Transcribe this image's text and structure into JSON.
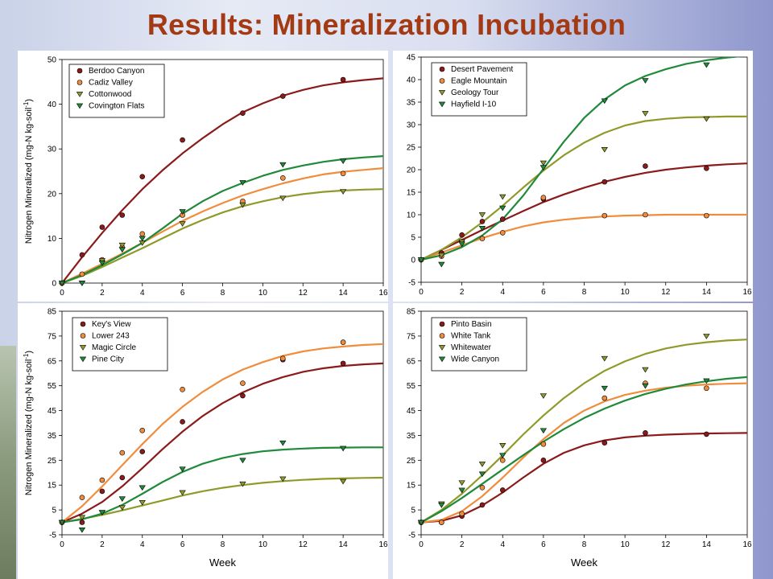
{
  "slide": {
    "title": "Results: Mineralization Incubation"
  },
  "colors": {
    "series1": "#8b1a1a",
    "series2": "#f08c3c",
    "series3": "#8f9a2a",
    "series4": "#1f8a3a",
    "title": "#a33a14"
  },
  "chart_data": [
    {
      "type": "scatter",
      "panel": "top-left",
      "xlabel": "",
      "ylabel": "Nitrogen Mineralized (mg-N kg-soil-1)",
      "xlim": [
        0,
        16
      ],
      "ylim": [
        0,
        50
      ],
      "xticks": [
        0,
        2,
        4,
        6,
        8,
        10,
        12,
        14,
        16
      ],
      "yticks": [
        0,
        10,
        20,
        30,
        40,
        50
      ],
      "legend_position": "top-left",
      "series": [
        {
          "name": "Berdoo Canyon",
          "marker": "circle",
          "x": [
            0,
            1,
            2,
            3,
            4,
            6,
            9,
            11,
            14
          ],
          "y": [
            0,
            6.3,
            12.5,
            15.2,
            23.8,
            32,
            38,
            41.8,
            45.5
          ],
          "fit_x": [
            0,
            1,
            2,
            3,
            4,
            5,
            6,
            7,
            8,
            9,
            10,
            11,
            12,
            13,
            14,
            15,
            16
          ],
          "fit_y": [
            0,
            5.8,
            11.2,
            16.3,
            21,
            25.2,
            29,
            32.4,
            35.5,
            38.2,
            40.2,
            41.9,
            43.2,
            44.2,
            44.9,
            45.4,
            45.8
          ]
        },
        {
          "name": "Cadiz Valley",
          "marker": "circle",
          "x": [
            0,
            1,
            2,
            3,
            4,
            6,
            9,
            11,
            14
          ],
          "y": [
            0,
            2,
            5.2,
            8,
            11,
            15.2,
            18.3,
            23.5,
            24.5
          ],
          "fit_x": [
            0,
            1,
            2,
            3,
            4,
            5,
            6,
            7,
            8,
            9,
            10,
            11,
            12,
            13,
            14,
            15,
            16
          ],
          "fit_y": [
            0,
            2.1,
            4.3,
            6.6,
            9,
            11.5,
            13.9,
            16,
            17.9,
            19.6,
            21,
            22.3,
            23.4,
            24.3,
            24.9,
            25.3,
            25.7
          ]
        },
        {
          "name": "Cottonwood",
          "marker": "triangle-down",
          "x": [
            0,
            1,
            2,
            3,
            4,
            6,
            9,
            11,
            14
          ],
          "y": [
            0,
            0,
            5,
            8.5,
            9,
            13.3,
            17.5,
            19,
            20.5
          ],
          "fit_x": [
            0,
            1,
            2,
            3,
            4,
            5,
            6,
            7,
            8,
            9,
            10,
            11,
            12,
            13,
            14,
            15,
            16
          ],
          "fit_y": [
            0,
            1.6,
            3.6,
            5.7,
            7.8,
            10,
            12.2,
            14.1,
            15.8,
            17.2,
            18.3,
            19.2,
            19.9,
            20.4,
            20.7,
            20.9,
            21
          ]
        },
        {
          "name": "Covington Flats",
          "marker": "triangle-down",
          "x": [
            0,
            1,
            2,
            3,
            4,
            6,
            9,
            11,
            14
          ],
          "y": [
            0,
            0,
            4.5,
            7.5,
            10,
            16,
            22.5,
            26.5,
            27.3
          ],
          "fit_x": [
            0,
            1,
            2,
            3,
            4,
            5,
            6,
            7,
            8,
            9,
            10,
            11,
            12,
            13,
            14,
            15,
            16
          ],
          "fit_y": [
            0,
            1.8,
            4,
            6.4,
            9,
            12.2,
            15.5,
            18.3,
            20.6,
            22.4,
            24,
            25.3,
            26.3,
            27.1,
            27.7,
            28.1,
            28.4
          ]
        }
      ]
    },
    {
      "type": "scatter",
      "panel": "top-right",
      "xlabel": "",
      "ylabel": "",
      "xlim": [
        0,
        16
      ],
      "ylim": [
        -5,
        45
      ],
      "xticks": [
        0,
        2,
        4,
        6,
        8,
        10,
        12,
        14,
        16
      ],
      "yticks": [
        -5,
        0,
        5,
        10,
        15,
        20,
        25,
        30,
        35,
        40,
        45
      ],
      "legend_position": "top-left",
      "series": [
        {
          "name": "Desert Pavement",
          "marker": "circle",
          "x": [
            0,
            1,
            2,
            3,
            4,
            6,
            9,
            11,
            14
          ],
          "y": [
            0,
            1.5,
            5.5,
            8.5,
            9,
            13.5,
            17.3,
            20.8,
            20.3
          ],
          "fit_x": [
            0,
            1,
            2,
            3,
            4,
            5,
            6,
            7,
            8,
            9,
            10,
            11,
            12,
            13,
            14,
            15,
            16
          ],
          "fit_y": [
            0,
            2.2,
            4.4,
            6.6,
            8.7,
            10.8,
            12.8,
            14.5,
            16,
            17.3,
            18.4,
            19.3,
            20,
            20.5,
            20.9,
            21.2,
            21.4
          ]
        },
        {
          "name": "Eagle Mountain",
          "marker": "circle",
          "x": [
            0,
            1,
            2,
            3,
            4,
            6,
            9,
            11,
            14
          ],
          "y": [
            0,
            0.8,
            4,
            4.7,
            6,
            13.8,
            9.8,
            10,
            9.8
          ],
          "fit_x": [
            0,
            1,
            2,
            3,
            4,
            5,
            6,
            7,
            8,
            9,
            10,
            11,
            12,
            13,
            14,
            15,
            16
          ],
          "fit_y": [
            0,
            1.6,
            3.2,
            4.8,
            6.2,
            7.4,
            8.3,
            8.9,
            9.3,
            9.6,
            9.8,
            9.9,
            10,
            10,
            10,
            10,
            10
          ]
        },
        {
          "name": "Geology Tour",
          "marker": "triangle-down",
          "x": [
            0,
            1,
            2,
            3,
            4,
            6,
            9,
            11,
            14
          ],
          "y": [
            0,
            1,
            4,
            10,
            14,
            21.5,
            24.5,
            32.5,
            31.3
          ],
          "fit_x": [
            0,
            1,
            2,
            3,
            4,
            5,
            6,
            7,
            8,
            9,
            10,
            11,
            12,
            13,
            14,
            15,
            16
          ],
          "fit_y": [
            0,
            2.2,
            5,
            8.3,
            12,
            16,
            19.8,
            23.2,
            26,
            28.2,
            29.8,
            30.8,
            31.3,
            31.6,
            31.7,
            31.8,
            31.8
          ]
        },
        {
          "name": "Hayfield I-10",
          "marker": "triangle-down",
          "x": [
            0,
            1,
            2,
            3,
            4,
            6,
            9,
            11,
            14
          ],
          "y": [
            0,
            -1,
            3.5,
            7,
            11.5,
            20.5,
            35.3,
            39.8,
            43.3
          ],
          "fit_x": [
            0,
            1,
            2,
            3,
            4,
            5,
            6,
            7,
            8,
            9,
            10,
            11,
            12,
            13,
            14,
            15,
            16
          ],
          "fit_y": [
            0,
            1,
            2.8,
            5.4,
            9,
            14.2,
            20.2,
            26.2,
            31.5,
            35.6,
            38.7,
            40.8,
            42.3,
            43.5,
            44.3,
            44.9,
            45.3
          ]
        }
      ]
    },
    {
      "type": "scatter",
      "panel": "bottom-left",
      "xlabel": "Week",
      "ylabel": "Nitrogen Mineralized (mg-N kg-soil-1)",
      "xlim": [
        0,
        16
      ],
      "ylim": [
        -5,
        85
      ],
      "xticks": [
        0,
        2,
        4,
        6,
        8,
        10,
        12,
        14,
        16
      ],
      "yticks": [
        -5,
        5,
        15,
        25,
        35,
        45,
        55,
        65,
        75,
        85
      ],
      "legend_position": "top-left",
      "series": [
        {
          "name": "Key's View",
          "marker": "circle",
          "x": [
            0,
            1,
            2,
            3,
            4,
            6,
            9,
            11,
            14
          ],
          "y": [
            0,
            0,
            12.5,
            18,
            28.5,
            40.5,
            51,
            65.5,
            64
          ],
          "fit_x": [
            0,
            1,
            2,
            3,
            4,
            5,
            6,
            7,
            8,
            9,
            10,
            11,
            12,
            13,
            14,
            15,
            16
          ],
          "fit_y": [
            0,
            3.5,
            8.2,
            14.5,
            21.8,
            29.4,
            36.5,
            42.8,
            48,
            52.3,
            55.8,
            58.5,
            60.6,
            62,
            63,
            63.6,
            64
          ]
        },
        {
          "name": "Lower 243",
          "marker": "circle",
          "x": [
            0,
            1,
            2,
            3,
            4,
            6,
            9,
            11,
            14
          ],
          "y": [
            0,
            10,
            17,
            28,
            37,
            53.5,
            56,
            66,
            72.5
          ],
          "fit_x": [
            0,
            1,
            2,
            3,
            4,
            5,
            6,
            7,
            8,
            9,
            10,
            11,
            12,
            13,
            14,
            15,
            16
          ],
          "fit_y": [
            0,
            6.5,
            14.5,
            23,
            31.5,
            39.5,
            46.5,
            52.5,
            57.5,
            61.5,
            64.5,
            67,
            68.8,
            70,
            70.8,
            71.4,
            71.8
          ]
        },
        {
          "name": "Magic Circle",
          "marker": "triangle-down",
          "x": [
            0,
            1,
            2,
            3,
            4,
            6,
            9,
            11,
            14
          ],
          "y": [
            0,
            2,
            4,
            6,
            8,
            12,
            15.5,
            17.5,
            16.5
          ],
          "fit_x": [
            0,
            1,
            2,
            3,
            4,
            5,
            6,
            7,
            8,
            9,
            10,
            11,
            12,
            13,
            14,
            15,
            16
          ],
          "fit_y": [
            0,
            1.4,
            3,
            4.8,
            6.8,
            8.8,
            10.8,
            12.5,
            13.9,
            15,
            15.9,
            16.6,
            17.1,
            17.5,
            17.7,
            17.9,
            18
          ]
        },
        {
          "name": "Pine City",
          "marker": "triangle-down",
          "x": [
            0,
            1,
            2,
            3,
            4,
            6,
            9,
            11,
            14
          ],
          "y": [
            0,
            -3,
            4,
            9.5,
            14,
            21.5,
            25,
            32,
            29.8
          ],
          "fit_x": [
            0,
            1,
            2,
            3,
            4,
            5,
            6,
            7,
            8,
            9,
            10,
            11,
            12,
            13,
            14,
            15,
            16
          ],
          "fit_y": [
            0,
            1.2,
            3.5,
            7,
            11.5,
            16.2,
            20.3,
            23.6,
            25.9,
            27.5,
            28.6,
            29.3,
            29.7,
            30,
            30.1,
            30.2,
            30.2
          ]
        }
      ]
    },
    {
      "type": "scatter",
      "panel": "bottom-right",
      "xlabel": "Week",
      "ylabel": "",
      "xlim": [
        0,
        16
      ],
      "ylim": [
        -5,
        85
      ],
      "xticks": [
        0,
        2,
        4,
        6,
        8,
        10,
        12,
        14,
        16
      ],
      "yticks": [
        -5,
        5,
        15,
        25,
        35,
        45,
        55,
        65,
        75,
        85
      ],
      "legend_position": "top-left",
      "series": [
        {
          "name": "Pinto Basin",
          "marker": "circle",
          "x": [
            0,
            1,
            2,
            3,
            4,
            6,
            9,
            11,
            14
          ],
          "y": [
            0,
            0,
            2.5,
            7,
            13,
            25,
            32,
            36,
            35.5
          ],
          "fit_x": [
            0,
            1,
            2,
            3,
            4,
            5,
            6,
            7,
            8,
            9,
            10,
            11,
            12,
            13,
            14,
            15,
            16
          ],
          "fit_y": [
            0,
            0.6,
            2.8,
            6.8,
            12,
            18,
            23.6,
            28,
            31,
            33,
            34.2,
            34.9,
            35.3,
            35.6,
            35.8,
            35.9,
            36
          ]
        },
        {
          "name": "White Tank",
          "marker": "circle",
          "x": [
            0,
            1,
            2,
            3,
            4,
            6,
            9,
            11,
            14
          ],
          "y": [
            0,
            0,
            3.5,
            14,
            25,
            31.5,
            50,
            56,
            54
          ],
          "fit_x": [
            0,
            1,
            2,
            3,
            4,
            5,
            6,
            7,
            8,
            9,
            10,
            11,
            12,
            13,
            14,
            15,
            16
          ],
          "fit_y": [
            0,
            1,
            4.5,
            10.5,
            18,
            26,
            33.5,
            40,
            45,
            48.7,
            51.3,
            53,
            54.2,
            55,
            55.5,
            55.8,
            56
          ]
        },
        {
          "name": "Whitewater",
          "marker": "triangle-down",
          "x": [
            0,
            1,
            2,
            3,
            4,
            6,
            9,
            11,
            14
          ],
          "y": [
            0,
            7.5,
            16,
            23.5,
            31,
            51,
            66,
            61.5,
            75
          ],
          "fit_x": [
            0,
            1,
            2,
            3,
            4,
            5,
            6,
            7,
            8,
            9,
            10,
            11,
            12,
            13,
            14,
            15,
            16
          ],
          "fit_y": [
            0,
            5,
            11.5,
            19,
            27,
            35.3,
            43,
            50,
            56,
            61,
            64.8,
            67.8,
            70,
            71.5,
            72.5,
            73.2,
            73.6
          ]
        },
        {
          "name": "Wide Canyon",
          "marker": "triangle-down",
          "x": [
            0,
            1,
            2,
            3,
            4,
            6,
            9,
            11,
            14
          ],
          "y": [
            0,
            7,
            13,
            19.5,
            27,
            37,
            54,
            55,
            57
          ],
          "fit_x": [
            0,
            1,
            2,
            3,
            4,
            5,
            6,
            7,
            8,
            9,
            10,
            11,
            12,
            13,
            14,
            15,
            16
          ],
          "fit_y": [
            0,
            4.5,
            9.8,
            15.5,
            21.3,
            27,
            32.5,
            37.5,
            42,
            45.8,
            49,
            51.7,
            53.8,
            55.5,
            56.8,
            57.8,
            58.5
          ]
        }
      ]
    }
  ]
}
